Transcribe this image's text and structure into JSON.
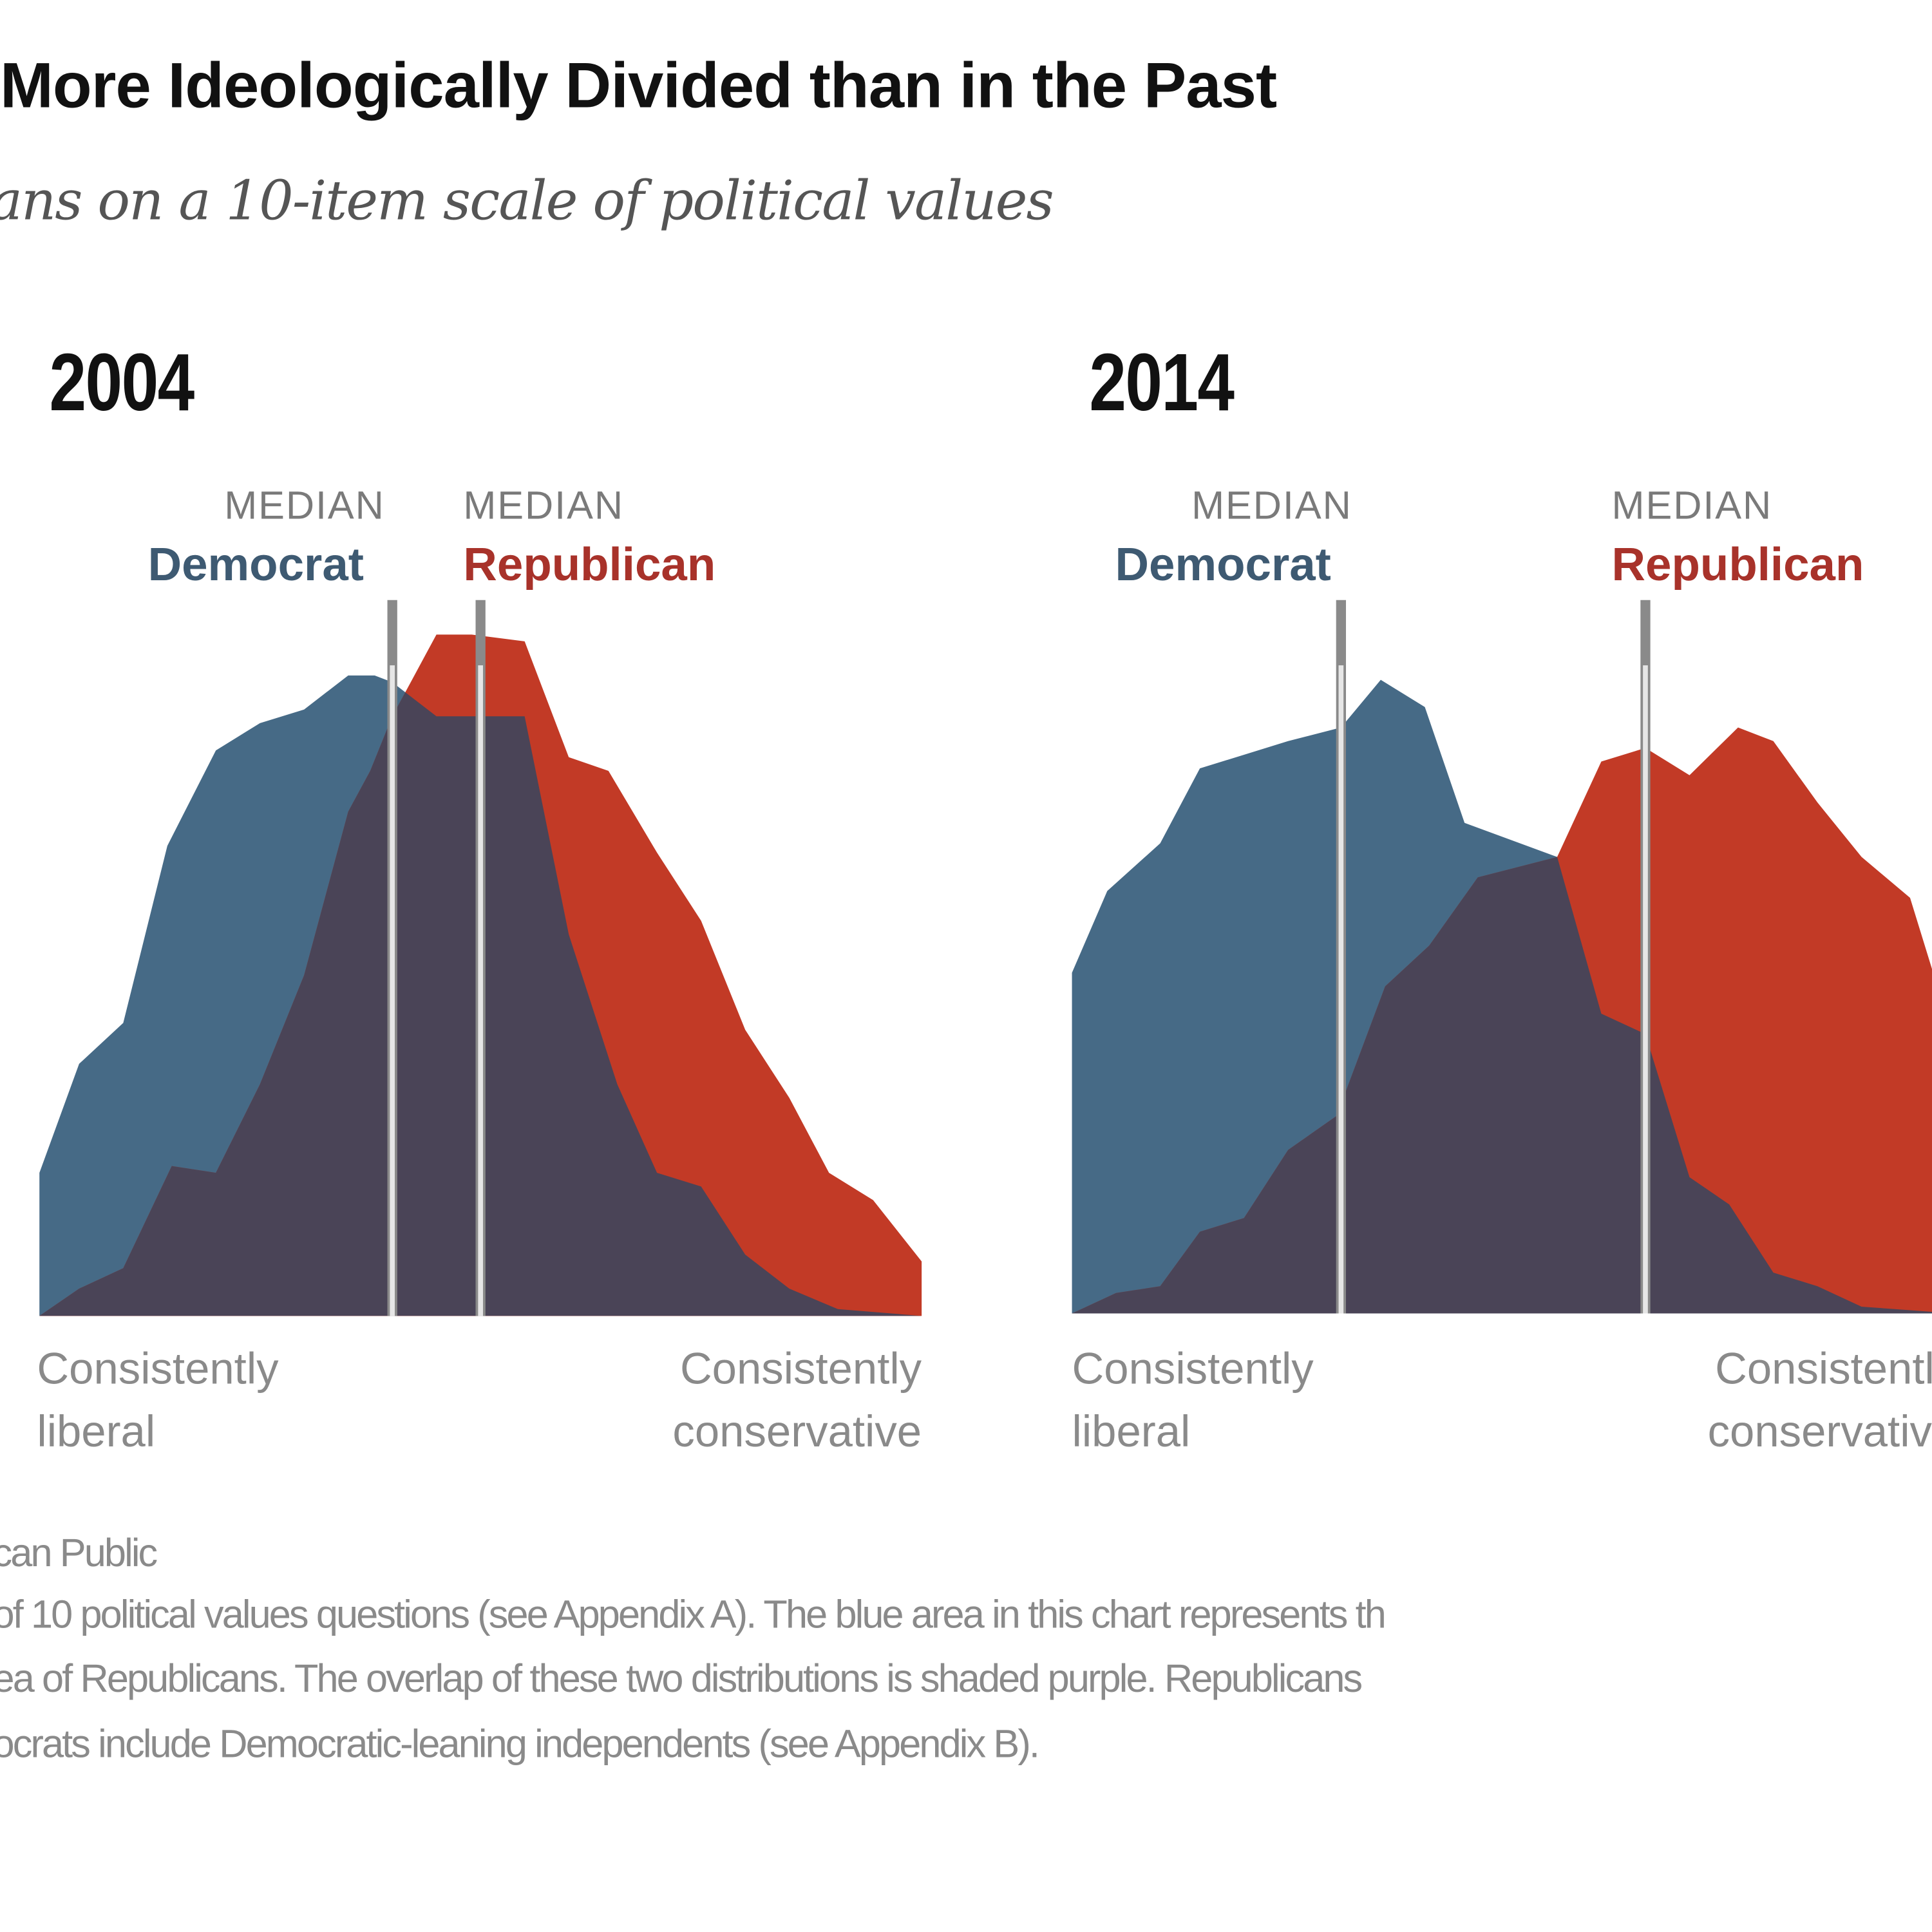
{
  "title": "More Ideologically Divided than in the Past",
  "subtitle": "ans on a 10-item scale of political values",
  "colors": {
    "democrat": "#466a86",
    "republican": "#c23a26",
    "overlap": "#4a4457",
    "median_line": "#e6e6e6",
    "democrat_label": "#3e5a72",
    "republican_label": "#a8322a"
  },
  "labels": {
    "median": "MEDIAN",
    "democrat": "Democrat",
    "republican": "Republican",
    "left_axis": [
      "Consistently",
      "liberal"
    ],
    "right_axis": [
      "Consistently",
      "conservative"
    ]
  },
  "footer": [
    "can Public",
    "of 10 political values questions (see Appendix A). The blue area in this chart represents th",
    "ea of Republicans. The overlap of these two distributions is shaded purple. Republicans",
    "ocrats include Democratic-leaning independents (see Appendix B)."
  ],
  "chart_data": [
    {
      "type": "area",
      "title": "2004",
      "xlim": [
        -10,
        10
      ],
      "ylim": [
        0,
        100
      ],
      "grid": false,
      "series": [
        {
          "name": "Democrat",
          "points": [
            [
              -10,
              21
            ],
            [
              -9.1,
              37
            ],
            [
              -8.1,
              43
            ],
            [
              -7.1,
              69
            ],
            [
              -6,
              83
            ],
            [
              -5,
              87
            ],
            [
              -4,
              89
            ],
            [
              -3,
              94
            ],
            [
              -2.4,
              94
            ],
            [
              -2,
              93
            ],
            [
              -1,
              88
            ],
            [
              1,
              88
            ],
            [
              2,
              56
            ],
            [
              3.1,
              34
            ],
            [
              4,
              21
            ],
            [
              5,
              19
            ],
            [
              6,
              9
            ],
            [
              7,
              4
            ],
            [
              8.1,
              1
            ],
            [
              10,
              0
            ]
          ],
          "median": -2.0
        },
        {
          "name": "Republican",
          "points": [
            [
              -10,
              0
            ],
            [
              -9.1,
              4
            ],
            [
              -8.1,
              7
            ],
            [
              -7,
              22
            ],
            [
              -6,
              21
            ],
            [
              -5,
              34
            ],
            [
              -4,
              50
            ],
            [
              -3,
              74
            ],
            [
              -2.5,
              80
            ],
            [
              -2,
              88
            ],
            [
              -1.5,
              94
            ],
            [
              -1,
              100
            ],
            [
              -0.2,
              100
            ],
            [
              1,
              99
            ],
            [
              2,
              82
            ],
            [
              2.9,
              80
            ],
            [
              4,
              68
            ],
            [
              5,
              58
            ],
            [
              6,
              42
            ],
            [
              7,
              32
            ],
            [
              7.9,
              21
            ],
            [
              8.9,
              17
            ],
            [
              10,
              8
            ]
          ],
          "median": 0.0
        }
      ]
    },
    {
      "type": "area",
      "title": "2014",
      "xlim": [
        -10,
        10
      ],
      "ylim": [
        0,
        100
      ],
      "grid": false,
      "series": [
        {
          "name": "Democrat",
          "points": [
            [
              -10,
              50
            ],
            [
              -9.2,
              62
            ],
            [
              -8,
              69
            ],
            [
              -7.1,
              80
            ],
            [
              -6.1,
              82
            ],
            [
              -5.1,
              84
            ],
            [
              -3.9,
              86
            ],
            [
              -3,
              93
            ],
            [
              -2,
              89
            ],
            [
              -1.1,
              72
            ],
            [
              1,
              67
            ],
            [
              2,
              44
            ],
            [
              3,
              41
            ],
            [
              4,
              20
            ],
            [
              4.9,
              16
            ],
            [
              5.9,
              6
            ],
            [
              6.9,
              4
            ],
            [
              7.9,
              1
            ],
            [
              10,
              0
            ]
          ],
          "median": -3.9
        },
        {
          "name": "Republican",
          "points": [
            [
              -10,
              0
            ],
            [
              -9,
              3
            ],
            [
              -8,
              4
            ],
            [
              -7.1,
              12
            ],
            [
              -6.1,
              14
            ],
            [
              -5.1,
              24
            ],
            [
              -4,
              29
            ],
            [
              -2.9,
              48
            ],
            [
              -1.9,
              54
            ],
            [
              -0.8,
              64
            ],
            [
              1,
              67
            ],
            [
              2,
              81
            ],
            [
              3,
              83
            ],
            [
              4,
              79
            ],
            [
              5.1,
              86
            ],
            [
              5.9,
              84
            ],
            [
              6.9,
              75
            ],
            [
              7.9,
              67
            ],
            [
              9,
              61
            ],
            [
              10,
              40
            ]
          ],
          "median": 3.0
        }
      ]
    }
  ]
}
